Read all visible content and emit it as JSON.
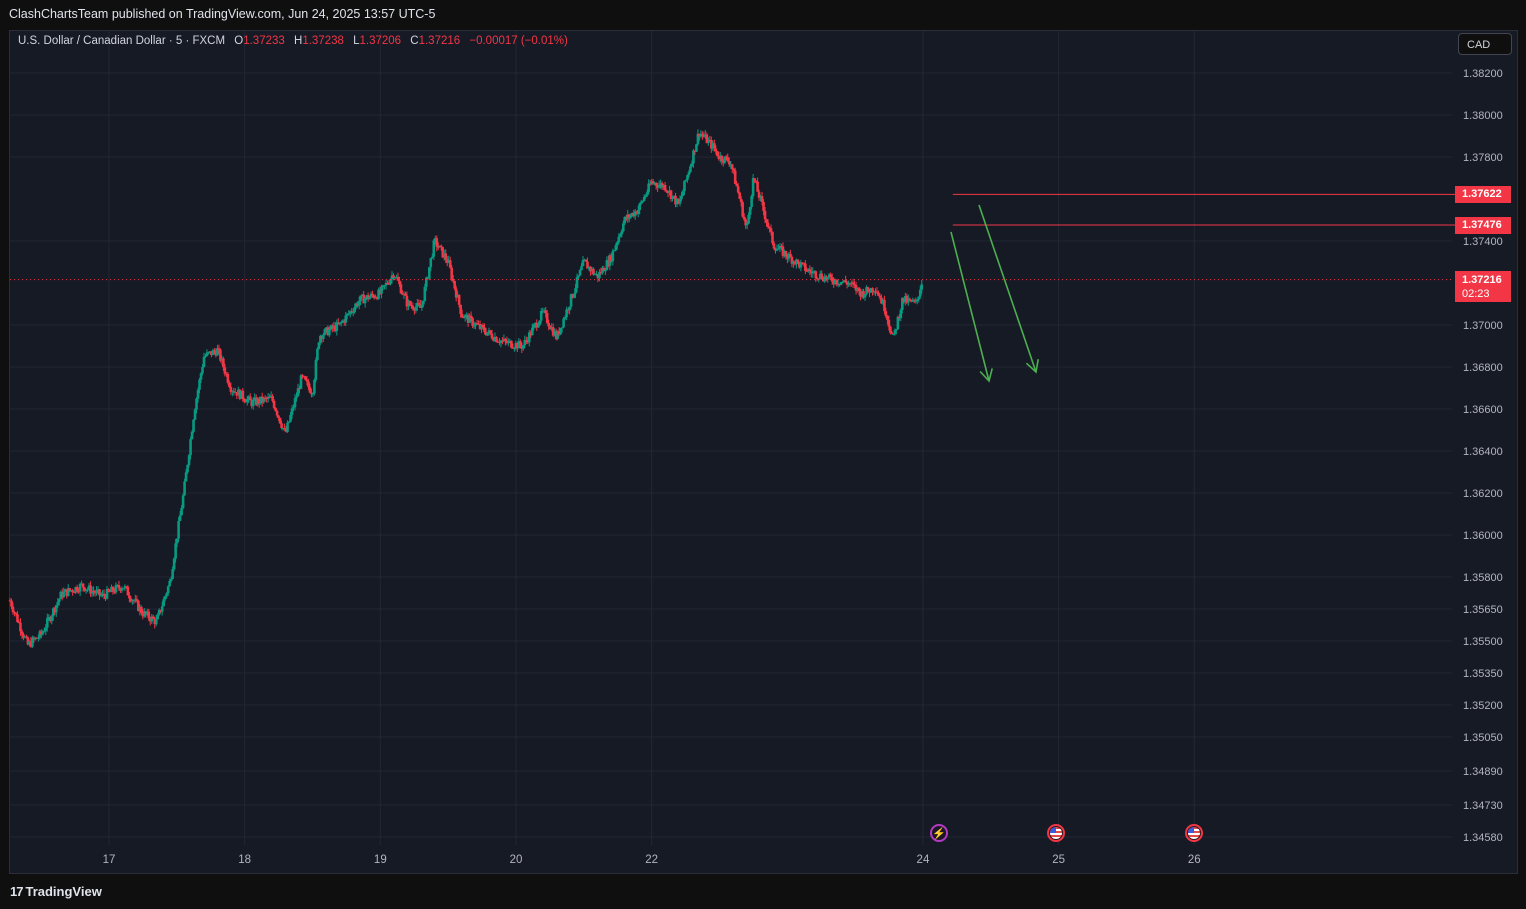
{
  "header": {
    "published": "ClashChartsTeam published on TradingView.com, Jun 24, 2025 13:57 UTC-5"
  },
  "legend": {
    "symbol": "U.S. Dollar / Canadian Dollar · 5 · FXCM",
    "open_label": "O",
    "open": "1.37233",
    "high_label": "H",
    "high": "1.37238",
    "low_label": "L",
    "low": "1.37206",
    "close_label": "C",
    "close": "1.37216",
    "change": "−0.00017 (−0.01%)"
  },
  "currency_button": "CAD",
  "footer": {
    "brand": "TradingView",
    "logo": "17"
  },
  "colors": {
    "up": "#089981",
    "down": "#f23645",
    "arrow": "#4caf50",
    "level": "#f23645",
    "grid": "#232733",
    "bg": "#161a25"
  },
  "chart_data": {
    "type": "candlestick",
    "symbol": "USDCAD",
    "timeframe": "5",
    "y_ticks": [
      "1.38200",
      "1.38000",
      "1.37800",
      "1.37400",
      "1.37000",
      "1.36800",
      "1.36600",
      "1.36400",
      "1.36200",
      "1.36000",
      "1.35800",
      "1.35650",
      "1.35500",
      "1.35350",
      "1.35200",
      "1.35050",
      "1.34890",
      "1.34730",
      "1.34580"
    ],
    "x_ticks": [
      "17",
      "18",
      "19",
      "20",
      "22",
      "24",
      "25",
      "26"
    ],
    "x_range": [
      16.27,
      26.9
    ],
    "last_price": "1.37216",
    "countdown": "02:23",
    "levels": [
      {
        "label": "1.37622",
        "value": 1.37622,
        "from": 23.22
      },
      {
        "label": "1.37476",
        "value": 1.37476,
        "from": 23.22
      }
    ],
    "price_path": [
      [
        16.27,
        1.3569
      ],
      [
        16.4,
        1.3548
      ],
      [
        16.5,
        1.3553
      ],
      [
        16.65,
        1.3572
      ],
      [
        16.8,
        1.3576
      ],
      [
        16.95,
        1.3571
      ],
      [
        17.1,
        1.3576
      ],
      [
        17.25,
        1.3563
      ],
      [
        17.35,
        1.3559
      ],
      [
        17.45,
        1.3578
      ],
      [
        17.55,
        1.362
      ],
      [
        17.63,
        1.366
      ],
      [
        17.7,
        1.3685
      ],
      [
        17.8,
        1.3688
      ],
      [
        17.9,
        1.367
      ],
      [
        18.05,
        1.3663
      ],
      [
        18.2,
        1.3665
      ],
      [
        18.3,
        1.3648
      ],
      [
        18.42,
        1.3675
      ],
      [
        18.5,
        1.3668
      ],
      [
        18.55,
        1.3695
      ],
      [
        18.7,
        1.37
      ],
      [
        18.85,
        1.3712
      ],
      [
        19.0,
        1.3715
      ],
      [
        19.1,
        1.3725
      ],
      [
        19.2,
        1.371
      ],
      [
        19.3,
        1.3708
      ],
      [
        19.4,
        1.374
      ],
      [
        19.5,
        1.373
      ],
      [
        19.6,
        1.3705
      ],
      [
        19.75,
        1.3698
      ],
      [
        19.9,
        1.3692
      ],
      [
        20.05,
        1.369
      ],
      [
        20.2,
        1.3706
      ],
      [
        20.3,
        1.3694
      ],
      [
        20.42,
        1.3715
      ],
      [
        20.5,
        1.373
      ],
      [
        20.6,
        1.3723
      ],
      [
        20.7,
        1.3732
      ],
      [
        20.8,
        1.375
      ],
      [
        20.9,
        1.3755
      ],
      [
        21.0,
        1.3768
      ],
      [
        21.1,
        1.3766
      ],
      [
        21.2,
        1.3757
      ],
      [
        21.28,
        1.3775
      ],
      [
        21.35,
        1.3792
      ],
      [
        21.45,
        1.3785
      ],
      [
        21.5,
        1.378
      ],
      [
        21.58,
        1.3778
      ],
      [
        21.65,
        1.376
      ],
      [
        21.7,
        1.3745
      ],
      [
        21.75,
        1.377
      ],
      [
        21.8,
        1.376
      ],
      [
        21.9,
        1.3738
      ],
      [
        22.0,
        1.3733
      ],
      [
        22.15,
        1.3726
      ],
      [
        22.3,
        1.3722
      ],
      [
        22.45,
        1.372
      ],
      [
        22.55,
        1.3715
      ],
      [
        22.65,
        1.3718
      ],
      [
        22.72,
        1.3708
      ],
      [
        22.78,
        1.3693
      ],
      [
        22.85,
        1.3712
      ],
      [
        22.95,
        1.371
      ],
      [
        23.0,
        1.3723
      ]
    ]
  },
  "events": [
    {
      "type": "bolt",
      "icon": "lightning-icon",
      "glyph": "⚡"
    },
    {
      "type": "flag",
      "icon": "us-flag-icon"
    },
    {
      "type": "flag",
      "icon": "us-flag-icon"
    }
  ]
}
